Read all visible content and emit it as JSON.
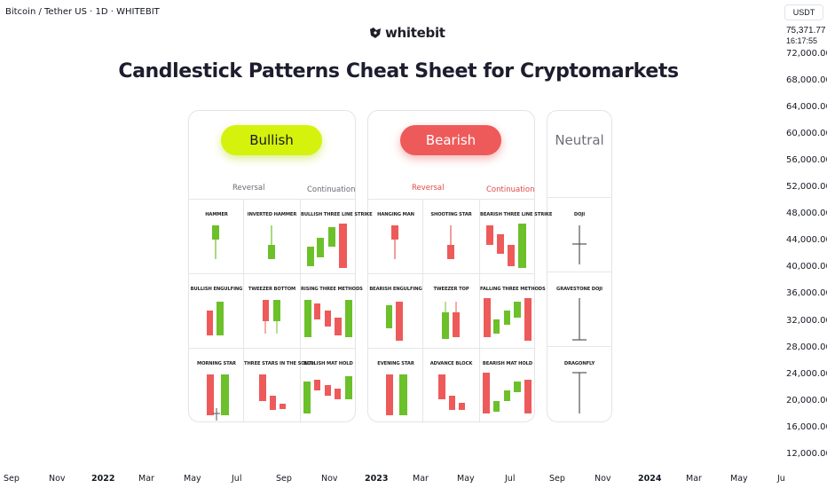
{
  "header": {
    "symbol_title": "Bitcoin / Tether US · 1D · WHITEBIT"
  },
  "brand": {
    "name": "whitebit"
  },
  "title": "Candlestick Patterns Cheat Sheet for Cryptomarkets",
  "bullish": {
    "heading": "Bullish",
    "reversal": "Reversal",
    "continuation": "Continuation",
    "patterns": [
      "HAMMER",
      "INVERTED HAMMER",
      "BULLISH THREE LINE STRIKE",
      "BULLISH ENGULFING",
      "TWEEZER BOTTOM",
      "RISING THREE METHODS",
      "MORNING STAR",
      "THREE STARS IN THE SOUTH",
      "BULLISH MAT HOLD"
    ]
  },
  "bearish": {
    "heading": "Bearish",
    "reversal": "Reversal",
    "continuation": "Continuation",
    "patterns": [
      "HANGING MAN",
      "SHOOTING STAR",
      "BEARISH THREE LINE STRIKE",
      "BEARISH ENGULFING",
      "TWEEZER TOP",
      "FALLING THREE METHODS",
      "EVENING STAR",
      "ADVANCE BLOCK",
      "BEARISH MAT HOLD"
    ]
  },
  "neutral": {
    "heading": "Neutral",
    "patterns": [
      "DOJI",
      "GRAVESTONE DOJI",
      "DRAGONFLY"
    ]
  },
  "colors": {
    "bull": "#6cc02a",
    "bear": "#ee5a5a",
    "wick": "#444444",
    "neutral_wick": "#555555"
  },
  "price_axis": {
    "currency": "USDT",
    "current_price": "75,371.77",
    "countdown": "16:17:55",
    "labels": [
      "72,000.00",
      "68,000.00",
      "64,000.00",
      "60,000.00",
      "56,000.00",
      "52,000.00",
      "48,000.00",
      "44,000.00",
      "40,000.00",
      "36,000.00",
      "32,000.00",
      "28,000.00",
      "24,000.00",
      "20,000.00",
      "16,000.00",
      "12,000.00"
    ]
  },
  "time_axis": {
    "labels": [
      "Sep",
      "Nov",
      "2022",
      "Mar",
      "May",
      "Jul",
      "Sep",
      "Nov",
      "2023",
      "Mar",
      "May",
      "Jul",
      "Sep",
      "Nov",
      "2024",
      "Mar",
      "May",
      "Ju"
    ]
  }
}
